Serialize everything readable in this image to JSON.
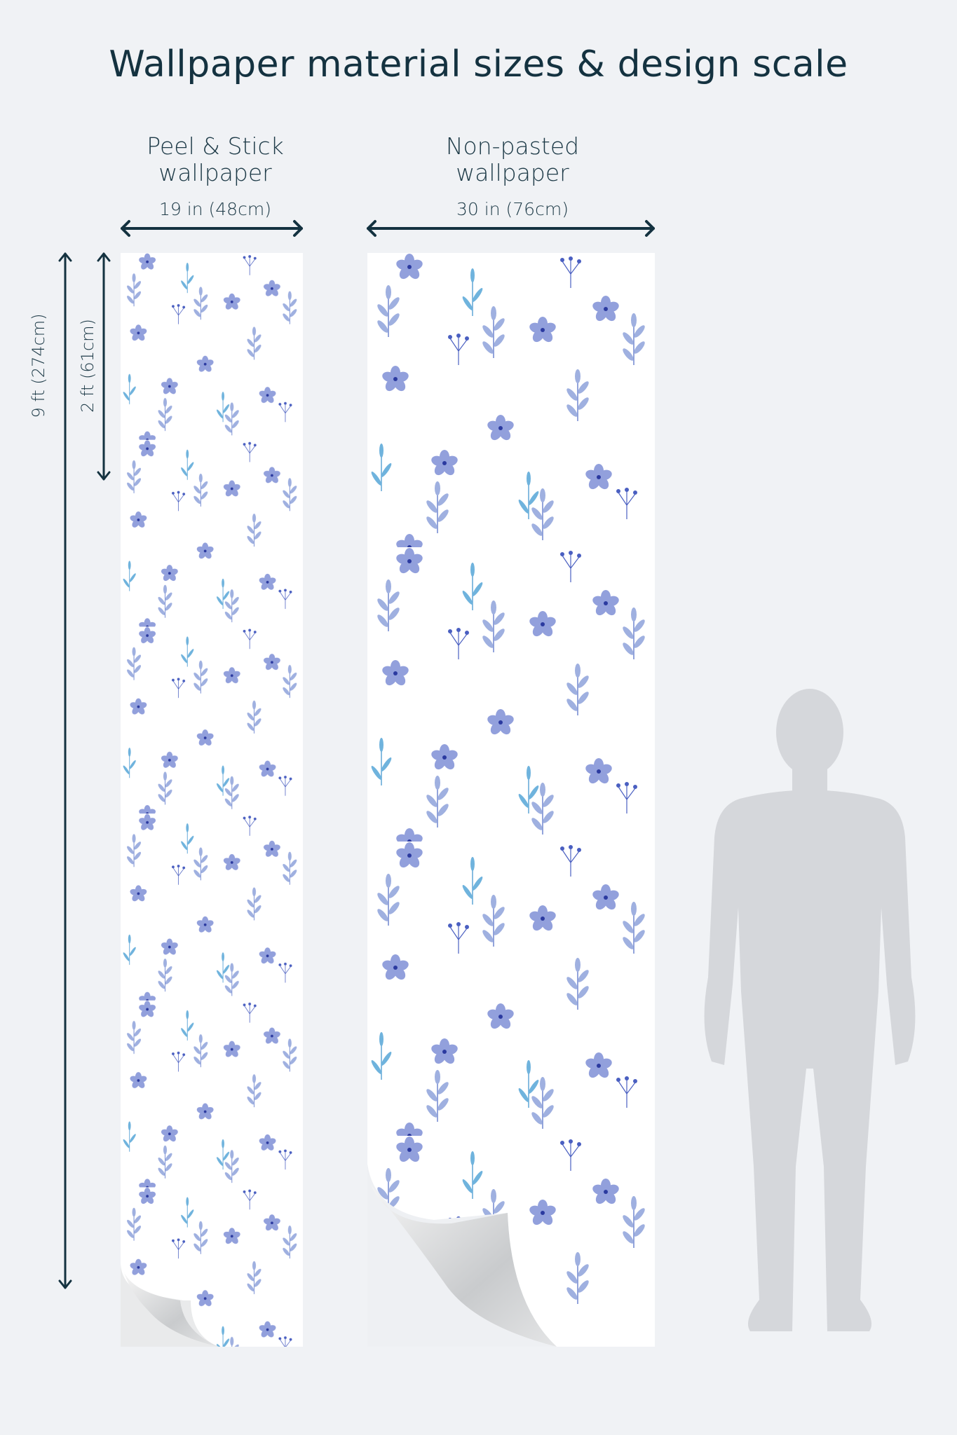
{
  "title": "Wallpaper material sizes & design scale",
  "products": [
    {
      "name_line1": "Peel & Stick",
      "name_line2": "wallpaper",
      "width_label": "19 in (48cm)"
    },
    {
      "name_line1": "Non-pasted",
      "name_line2": "wallpaper",
      "width_label": "30 in (76cm)"
    }
  ],
  "height_labels": {
    "total": "9 ft (274cm)",
    "repeat": "2 ft (61cm)"
  },
  "colors": {
    "background": "#f0f2f5",
    "text": "#143240",
    "pattern_dark": "#4a5fc1",
    "pattern_light": "#9fb0e0",
    "pattern_teal": "#5fa6d6",
    "silhouette": "#d5d7db"
  },
  "icons": {
    "human": "human-silhouette-icon"
  }
}
